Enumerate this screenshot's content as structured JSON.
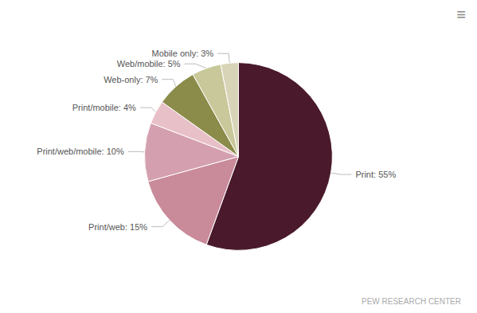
{
  "chart_data": {
    "type": "pie",
    "categories": [
      "Print",
      "Print/web",
      "Print/web/mobile",
      "Print/mobile",
      "Web-only",
      "Web/mobile",
      "Mobile only"
    ],
    "values": [
      55,
      15,
      10,
      4,
      7,
      5,
      3
    ],
    "value_labels": [
      "Print: 55%",
      "Print/web: 15%",
      "Print/web/mobile: 10%",
      "Print/mobile: 4%",
      "Web-only: 7%",
      "Web/mobile: 5%",
      "Mobile only: 3%"
    ],
    "colors": [
      "#4a1a2c",
      "#c98a9a",
      "#d4a0b0",
      "#e8c0c8",
      "#8b8b4a",
      "#c8c89a",
      "#d8d4b8"
    ],
    "data_labels": true,
    "annotations": [
      "PEW RESEARCH CENTER",
      "≡"
    ]
  }
}
